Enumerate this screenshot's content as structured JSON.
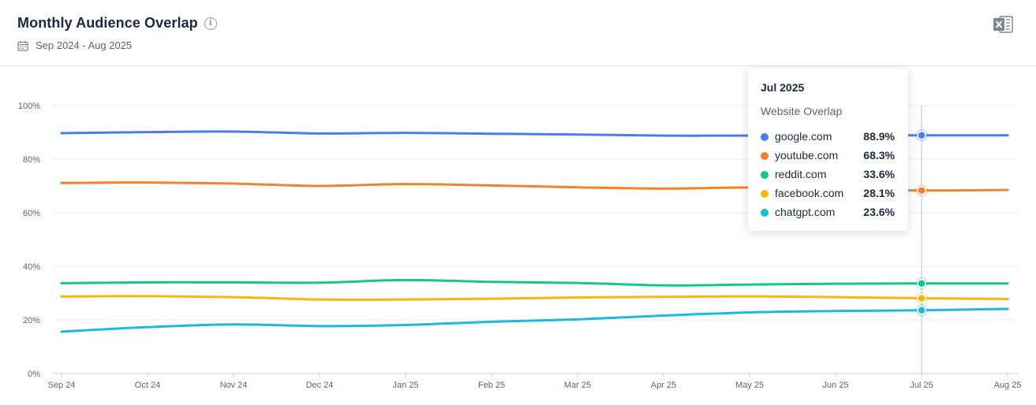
{
  "header": {
    "title": "Monthly Audience Overlap",
    "info_icon": "info-icon",
    "calendar_icon": "calendar-icon",
    "date_range": "Sep 2024 - Aug 2025",
    "export_icon": "excel-export-icon"
  },
  "tooltip": {
    "date": "Jul 2025",
    "subtitle": "Website Overlap",
    "rows": [
      {
        "name": "google.com",
        "value": "88.9%",
        "color": "#4a7cf0"
      },
      {
        "name": "youtube.com",
        "value": "68.3%",
        "color": "#f5812a"
      },
      {
        "name": "reddit.com",
        "value": "33.6%",
        "color": "#16c48c"
      },
      {
        "name": "facebook.com",
        "value": "28.1%",
        "color": "#f7b614"
      },
      {
        "name": "chatgpt.com",
        "value": "23.6%",
        "color": "#1dbbd9"
      }
    ]
  },
  "chart_data": {
    "type": "line",
    "categories": [
      "Sep 24",
      "Oct 24",
      "Nov 24",
      "Dec 24",
      "Jan 25",
      "Feb 25",
      "Mar 25",
      "Apr 25",
      "May 25",
      "Jun 25",
      "Jul 25",
      "Aug 25"
    ],
    "ylim": [
      0,
      100
    ],
    "yticks": [
      "0%",
      "20%",
      "40%",
      "60%",
      "80%",
      "100%"
    ],
    "grid": true,
    "highlight_category": "Jul 25",
    "series": [
      {
        "name": "google.com",
        "color": "#4a7cf0",
        "values": [
          89.7,
          90.1,
          90.3,
          89.6,
          89.8,
          89.5,
          89.2,
          88.8,
          88.8,
          88.9,
          88.9,
          88.9
        ]
      },
      {
        "name": "youtube.com",
        "color": "#f5812a",
        "values": [
          71.1,
          71.3,
          70.9,
          70.0,
          70.7,
          70.2,
          69.5,
          69.0,
          69.4,
          68.8,
          68.3,
          68.5
        ]
      },
      {
        "name": "reddit.com",
        "color": "#16c48c",
        "values": [
          33.7,
          34.0,
          34.0,
          33.9,
          34.9,
          34.2,
          33.8,
          32.9,
          33.2,
          33.5,
          33.6,
          33.6
        ]
      },
      {
        "name": "facebook.com",
        "color": "#f7b614",
        "values": [
          28.7,
          28.9,
          28.5,
          27.6,
          27.6,
          27.9,
          28.4,
          28.6,
          28.8,
          28.5,
          28.1,
          27.8
        ]
      },
      {
        "name": "chatgpt.com",
        "color": "#1dbbd9",
        "values": [
          15.6,
          17.3,
          18.3,
          17.7,
          18.1,
          19.3,
          20.2,
          21.6,
          22.8,
          23.3,
          23.6,
          24.1
        ]
      }
    ]
  }
}
